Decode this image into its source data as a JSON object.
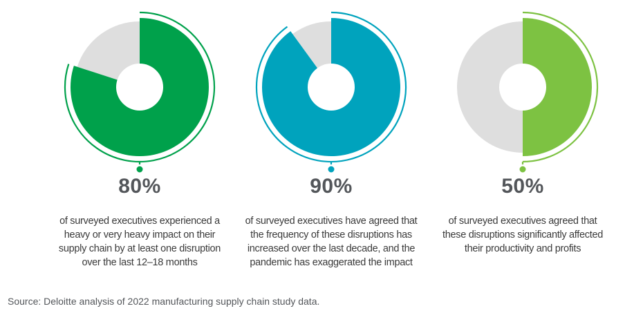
{
  "chart_data": [
    {
      "type": "pie",
      "value": 80,
      "value_label": "80%",
      "color": "#00a14b",
      "rest_color": "#dedede",
      "description": [
        "of surveyed executives experienced a",
        "heavy or very heavy impact on their",
        "supply chain by at least one disruption",
        "over the last 12–18 months"
      ]
    },
    {
      "type": "pie",
      "value": 90,
      "value_label": "90%",
      "color": "#00a3bd",
      "rest_color": "#dedede",
      "description": [
        "of surveyed executives have agreed that",
        "the frequency of these disruptions has",
        "increased over the last decade, and the",
        "pandemic has exaggerated the impact"
      ]
    },
    {
      "type": "pie",
      "value": 50,
      "value_label": "50%",
      "color": "#7dc242",
      "rest_color": "#dedede",
      "description": [
        "of surveyed executives agreed that",
        "these disruptions significantly affected",
        "their productivity and profits"
      ]
    }
  ],
  "source": "Source: Deloitte analysis of 2022 manufacturing supply chain study data."
}
